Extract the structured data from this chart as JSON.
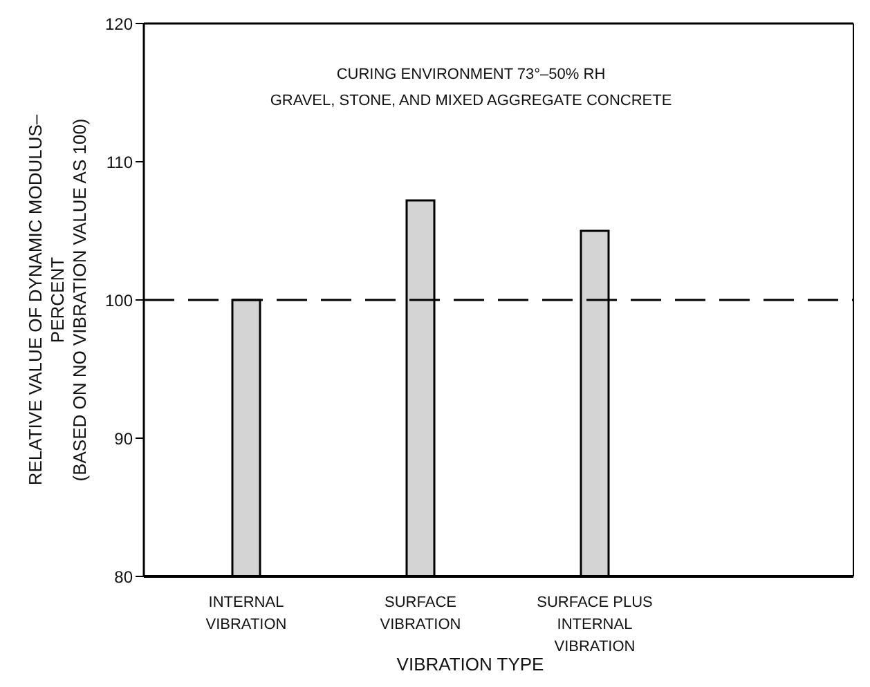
{
  "chart_data": {
    "type": "bar",
    "xlabel": "VIBRATION TYPE",
    "ylabel": "RELATIVE VALUE OF DYNAMIC MODULUS–\nPERCENT\n(BASED ON NO VIBRATION VALUE AS 100)",
    "categories": [
      "INTERNAL\nVIBRATION",
      "SURFACE\nVIBRATION",
      "SURFACE PLUS\nINTERNAL\nVIBRATION"
    ],
    "values": [
      100,
      107.2,
      105.0
    ],
    "color": "#d4d4d4",
    "ylim": [
      80,
      120
    ],
    "yticks": [
      80,
      90,
      100,
      110,
      120
    ],
    "ref_lines": [
      {
        "axis": "y",
        "value": 100,
        "line_style": "dashed",
        "color": "#000000"
      }
    ],
    "annotations": [
      "CURING ENVIRONMENT 73°–50% RH",
      "GRAVEL, STONE, AND MIXED AGGREGATE CONCRETE"
    ],
    "grid": false,
    "legend": false
  }
}
